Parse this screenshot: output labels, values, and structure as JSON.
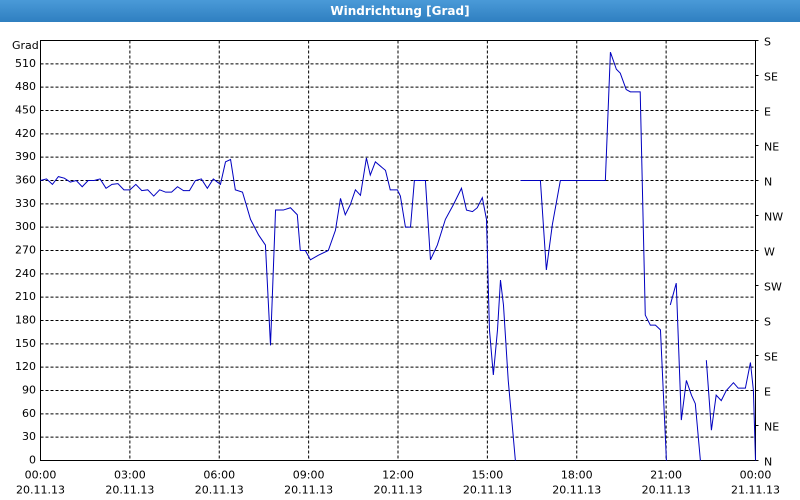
{
  "chart_data": {
    "type": "line",
    "title": "Windrichtung [Grad]",
    "ylabel": "Grad",
    "color": "#0000c0",
    "grid": true,
    "x": [
      0,
      0.2,
      0.4,
      0.6,
      0.8,
      1.0,
      1.2,
      1.4,
      1.6,
      1.8,
      2.0,
      2.2,
      2.4,
      2.6,
      2.8,
      3.0,
      3.2,
      3.4,
      3.6,
      3.8,
      4.0,
      4.2,
      4.4,
      4.6,
      4.8,
      5.0,
      5.2,
      5.4,
      5.6,
      5.8,
      6.04,
      6.21,
      6.38,
      6.54,
      6.78,
      7.05,
      7.32,
      7.55,
      7.72,
      7.89,
      8.15,
      8.39,
      8.62,
      8.72,
      8.89,
      9.06,
      9.33,
      9.66,
      9.9,
      10.07,
      10.23,
      10.4,
      10.57,
      10.74,
      10.94,
      11.07,
      11.24,
      11.58,
      11.74,
      11.98,
      12.08,
      12.25,
      12.42,
      12.55,
      12.92,
      13.09,
      13.32,
      13.59,
      13.86,
      14.13,
      14.3,
      14.5,
      14.66,
      14.83,
      14.97,
      15.07,
      15.2,
      15.34,
      15.44,
      15.54,
      15.7,
      15.94,
      16.0,
      16.11,
      16.78,
      16.98,
      17.18,
      17.45,
      18.96,
      19.13,
      19.33,
      19.46,
      19.66,
      19.8,
      20.13,
      20.3,
      20.47,
      20.64,
      20.81,
      21.01,
      21.08,
      21.14,
      21.34,
      21.51,
      21.68,
      21.85,
      21.98,
      22.15,
      22.25,
      22.35,
      22.52,
      22.68,
      22.85,
      23.02,
      23.26,
      23.42,
      23.66,
      23.83,
      23.93,
      24.0
    ],
    "values": [
      360,
      362,
      355,
      365,
      363,
      358,
      360,
      352,
      360,
      360,
      362,
      350,
      355,
      356,
      348,
      348,
      355,
      347,
      348,
      340,
      348,
      345,
      345,
      352,
      347,
      347,
      360,
      362,
      350,
      362,
      355,
      384,
      387,
      348,
      345,
      310,
      290,
      277,
      148,
      322,
      322,
      325,
      316,
      270,
      270,
      258,
      264,
      270,
      296,
      337,
      316,
      329,
      348,
      341,
      389,
      367,
      384,
      373,
      348,
      348,
      340,
      300,
      300,
      360,
      360,
      258,
      277,
      310,
      329,
      350,
      322,
      320,
      325,
      338,
      310,
      168,
      110,
      168,
      232,
      200,
      103,
      0,
      null,
      360,
      360,
      245,
      303,
      360,
      360,
      525,
      503,
      498,
      477,
      474,
      474,
      187,
      174,
      174,
      168,
      0,
      null,
      200,
      228,
      52,
      103,
      84,
      73,
      0,
      null,
      129,
      39,
      84,
      77,
      90,
      100,
      93,
      93,
      126,
      90,
      0
    ],
    "xlim": [
      0,
      24
    ],
    "xticks": [
      {
        "value": 0,
        "label": "00:00",
        "date": "20.11.13"
      },
      {
        "value": 3,
        "label": "03:00",
        "date": "20.11.13"
      },
      {
        "value": 6,
        "label": "06:00",
        "date": "20.11.13"
      },
      {
        "value": 9,
        "label": "09:00",
        "date": "20.11.13"
      },
      {
        "value": 12,
        "label": "12:00",
        "date": "20.11.13"
      },
      {
        "value": 15,
        "label": "15:00",
        "date": "20.11.13"
      },
      {
        "value": 18,
        "label": "18:00",
        "date": "20.11.13"
      },
      {
        "value": 21,
        "label": "21:00",
        "date": "20.11.13"
      },
      {
        "value": 24,
        "label": "00:00",
        "date": "21.11.13"
      }
    ],
    "ylim": [
      0,
      540
    ],
    "yticks": [
      0,
      30,
      60,
      90,
      120,
      150,
      180,
      210,
      240,
      270,
      300,
      330,
      360,
      390,
      420,
      450,
      480,
      510
    ],
    "y2lim": [
      0,
      540
    ],
    "y2ticks": [
      {
        "value": 0,
        "label": "N"
      },
      {
        "value": 45,
        "label": "NE"
      },
      {
        "value": 90,
        "label": "E"
      },
      {
        "value": 135,
        "label": "SE"
      },
      {
        "value": 180,
        "label": "S"
      },
      {
        "value": 225,
        "label": "SW"
      },
      {
        "value": 270,
        "label": "W"
      },
      {
        "value": 315,
        "label": "NW"
      },
      {
        "value": 360,
        "label": "N"
      },
      {
        "value": 405,
        "label": "NE"
      },
      {
        "value": 450,
        "label": "E"
      },
      {
        "value": 495,
        "label": "SE"
      },
      {
        "value": 540,
        "label": "S"
      }
    ]
  }
}
